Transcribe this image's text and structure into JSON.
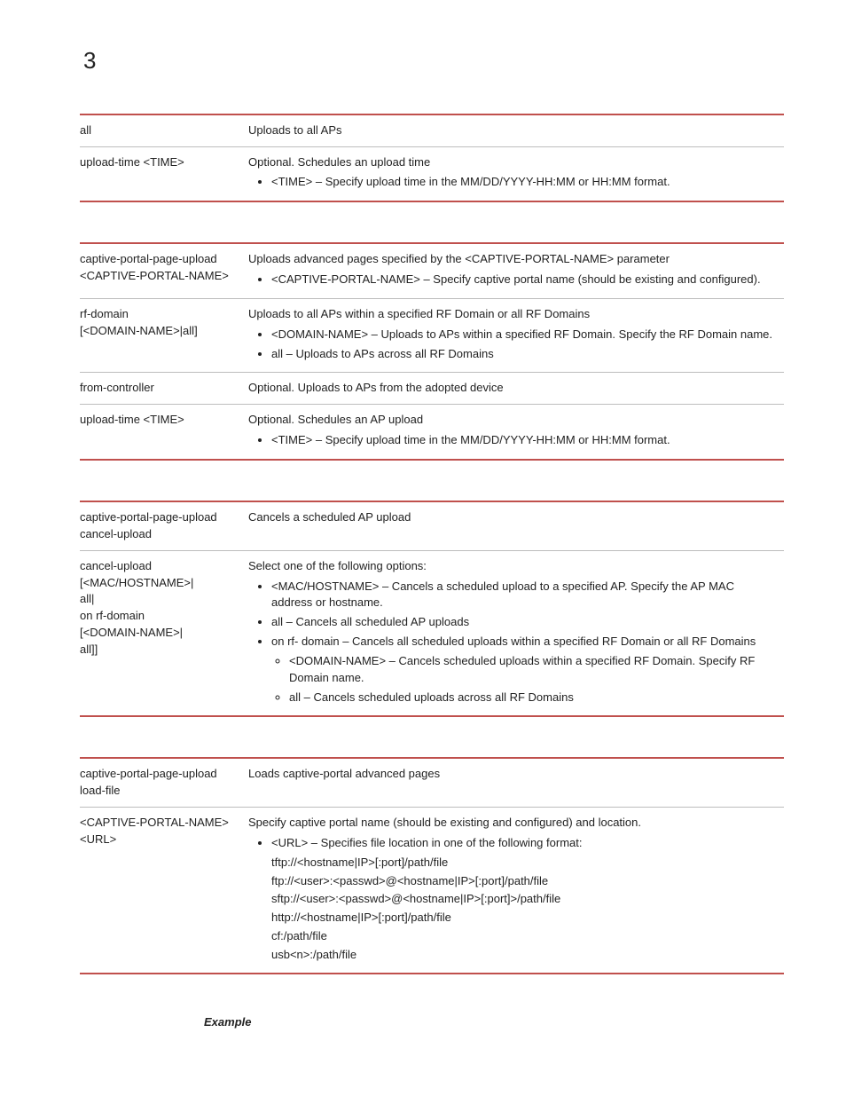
{
  "page_number": "3",
  "t1": {
    "r1": {
      "p": "all",
      "d": "Uploads to all APs"
    },
    "r2": {
      "p": "upload-time <TIME>",
      "d": "Optional. Schedules an upload time",
      "b1": "<TIME> – Specify upload time in the MM/DD/YYYY-HH:MM or HH:MM format."
    }
  },
  "t2": {
    "r1": {
      "p1": "captive-portal-page-upload",
      "p2": "<CAPTIVE-PORTAL-NAME>",
      "d": "Uploads advanced pages specified by the <CAPTIVE-PORTAL-NAME> parameter",
      "b1": "<CAPTIVE-PORTAL-NAME> – Specify captive portal name (should be existing and configured)."
    },
    "r2": {
      "p1": "rf-domain",
      "p2": "[<DOMAIN-NAME>|all]",
      "d": "Uploads to all APs within a specified RF Domain or all RF Domains",
      "b1": "<DOMAIN-NAME> – Uploads to APs within a specified RF Domain. Specify the RF Domain name.",
      "b2": "all – Uploads to APs across all RF Domains"
    },
    "r3": {
      "p": "from-controller",
      "d": "Optional. Uploads to APs from the adopted device"
    },
    "r4": {
      "p": "upload-time <TIME>",
      "d": "Optional. Schedules an AP upload",
      "b1": "<TIME> – Specify upload time in the MM/DD/YYYY-HH:MM or HH:MM format."
    }
  },
  "t3": {
    "r1": {
      "p1": "captive-portal-page-upload",
      "p2": "cancel-upload",
      "d": "Cancels a scheduled AP upload"
    },
    "r2": {
      "p1": "cancel-upload",
      "p2": "[<MAC/HOSTNAME>|",
      "p3": "all|",
      "p4": "on rf-domain",
      "p5": "[<DOMAIN-NAME>|",
      "p6": "all]]",
      "d": "Select one of the following options:",
      "b1": "<MAC/HOSTNAME> – Cancels a scheduled upload to a specified AP. Specify the AP MAC address or hostname.",
      "b2": "all – Cancels all scheduled AP uploads",
      "b3": "on rf- domain – Cancels all scheduled uploads within a specified RF Domain or all RF Domains",
      "b3a": "<DOMAIN-NAME> – Cancels scheduled uploads within a specified RF Domain. Specify RF Domain name.",
      "b3b": "all – Cancels scheduled uploads across all RF Domains"
    }
  },
  "t4": {
    "r1": {
      "p1": "captive-portal-page-upload",
      "p2": "load-file",
      "d": "Loads captive-portal advanced pages"
    },
    "r2": {
      "p1": "<CAPTIVE-PORTAL-NAME>",
      "p2": "<URL>",
      "d": "Specify captive portal name (should be existing and configured) and location.",
      "b1": "<URL> – Specifies file location in one of the following format:",
      "l1": "tftp://<hostname|IP>[:port]/path/file",
      "l2": "ftp://<user>:<passwd>@<hostname|IP>[:port]/path/file",
      "l3": "sftp://<user>:<passwd>@<hostname|IP>[:port]>/path/file",
      "l4": "http://<hostname|IP>[:port]/path/file",
      "l5": "cf:/path/file",
      "l6": "usb<n>:/path/file"
    }
  },
  "example_label": "Example"
}
